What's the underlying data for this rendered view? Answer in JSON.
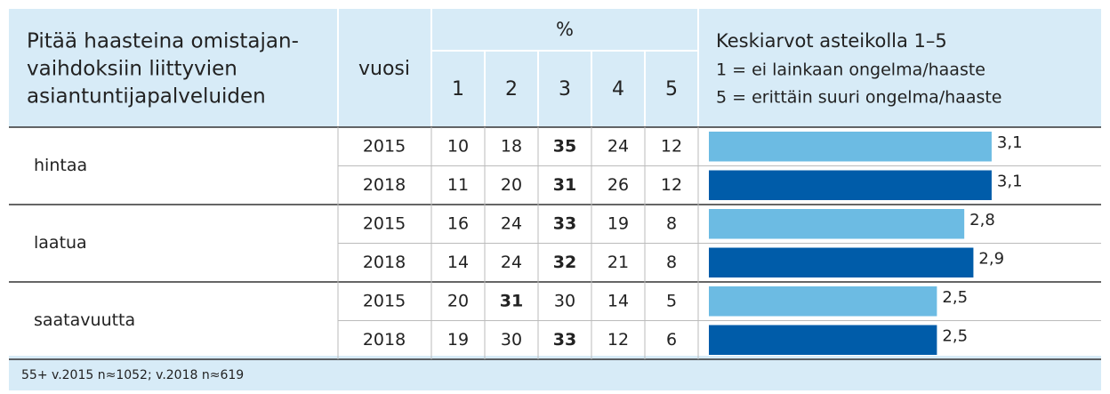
{
  "header": {
    "title": [
      "Pitää haasteina omistajan-",
      "vaihdoksiin liittyvien",
      "asiantuntijapalveluiden"
    ],
    "year": "vuosi",
    "percent": "%",
    "scale": [
      1,
      2,
      3,
      4,
      5
    ],
    "mean_title": "Keskiarvot asteikolla 1–5",
    "mean_notes": [
      "1 = ei lainkaan ongelma/haaste",
      "5 = erittäin suuri ongelma/haaste"
    ]
  },
  "groups": [
    {
      "label": "hintaa",
      "rows": [
        {
          "year": 2015,
          "values": [
            10,
            18,
            35,
            24,
            12
          ],
          "mean": 3.1,
          "mean_label": "3,1",
          "color": "#6cbbe3"
        },
        {
          "year": 2018,
          "values": [
            11,
            20,
            31,
            26,
            12
          ],
          "mean": 3.1,
          "mean_label": "3,1",
          "color": "#005ca9"
        }
      ]
    },
    {
      "label": "laatua",
      "rows": [
        {
          "year": 2015,
          "values": [
            16,
            24,
            33,
            19,
            8
          ],
          "mean": 2.8,
          "mean_label": "2,8",
          "color": "#6cbbe3"
        },
        {
          "year": 2018,
          "values": [
            14,
            24,
            32,
            21,
            8
          ],
          "mean": 2.9,
          "mean_label": "2,9",
          "color": "#005ca9"
        }
      ]
    },
    {
      "label": "saatavuutta",
      "rows": [
        {
          "year": 2015,
          "values": [
            20,
            31,
            30,
            14,
            5
          ],
          "mean": 2.5,
          "mean_label": "2,5",
          "color": "#6cbbe3"
        },
        {
          "year": 2018,
          "values": [
            19,
            30,
            33,
            12,
            6
          ],
          "mean": 2.5,
          "mean_label": "2,5",
          "color": "#005ca9"
        }
      ]
    }
  ],
  "xlim": [
    0,
    4.3
  ],
  "note": "55+ v.2015 n≈1052; v.2018 n≈619"
}
